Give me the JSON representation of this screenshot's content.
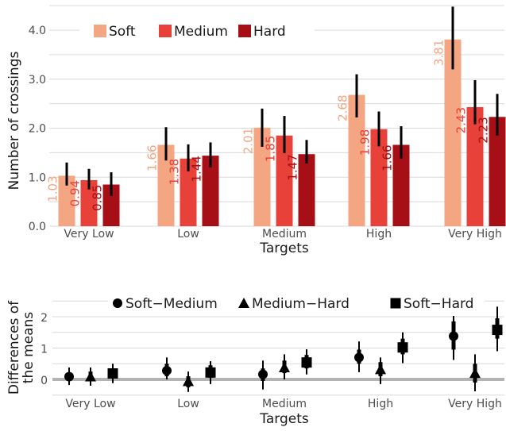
{
  "chart_data": [
    {
      "type": "bar",
      "xlabel": "Targets",
      "ylabel": "Number of crossings",
      "ylim": [
        0,
        4.4
      ],
      "yticks": [
        "0.0",
        "1.0",
        "2.0",
        "3.0",
        "4.0"
      ],
      "grid": true,
      "legend_position": "top-left",
      "categories": [
        "Very Low",
        "Low",
        "Medium",
        "High",
        "Very High"
      ],
      "series": [
        {
          "name": "Soft",
          "color": "#f4a582",
          "values": [
            1.03,
            1.66,
            2.01,
            2.68,
            3.81
          ],
          "labels": [
            "1.03",
            "1.66",
            "2.01",
            "2.68",
            "3.81"
          ],
          "err_low": [
            0.83,
            1.34,
            1.62,
            2.22,
            3.2
          ],
          "err_high": [
            1.3,
            2.02,
            2.4,
            3.1,
            4.48
          ]
        },
        {
          "name": "Medium",
          "color": "#e8413a",
          "values": [
            0.94,
            1.38,
            1.85,
            1.98,
            2.43
          ],
          "labels": [
            "0.94",
            "1.38",
            "1.85",
            "1.98",
            "2.43"
          ],
          "err_low": [
            0.75,
            1.12,
            1.49,
            1.63,
            2.08
          ],
          "err_high": [
            1.17,
            1.67,
            2.25,
            2.34,
            2.98
          ]
        },
        {
          "name": "Hard",
          "color": "#a50f15",
          "values": [
            0.85,
            1.44,
            1.47,
            1.66,
            2.23
          ],
          "labels": [
            "0.85",
            "1.44",
            "1.47",
            "1.66",
            "2.23"
          ],
          "err_low": [
            0.62,
            1.2,
            1.28,
            1.38,
            1.85
          ],
          "err_high": [
            1.1,
            1.71,
            1.76,
            2.04,
            2.7
          ]
        }
      ]
    },
    {
      "type": "scatter",
      "xlabel": "Targets",
      "ylabel_lines": [
        "Differences of",
        "the means"
      ],
      "ylim": [
        -0.3,
        2.5
      ],
      "yticks": [
        "0",
        "1",
        "2"
      ],
      "grid": true,
      "legend_position": "top",
      "categories": [
        "Very Low",
        "Low",
        "Medium",
        "High",
        "Very High"
      ],
      "series": [
        {
          "name": "Soft−Medium",
          "marker": "circle",
          "values": [
            0.09,
            0.28,
            0.16,
            0.7,
            1.38
          ],
          "ci95_low": [
            -0.18,
            0.0,
            -0.32,
            0.23,
            0.62
          ],
          "ci95_high": [
            0.38,
            0.7,
            0.6,
            1.21,
            2.12
          ],
          "ci50_low": [
            0.0,
            0.1,
            -0.05,
            0.5,
            0.95
          ],
          "ci50_high": [
            0.2,
            0.5,
            0.35,
            0.95,
            1.85
          ]
        },
        {
          "name": "Medium−Hard",
          "marker": "triangle",
          "values": [
            0.09,
            -0.06,
            0.38,
            0.32,
            0.2
          ],
          "ci95_low": [
            -0.2,
            -0.4,
            0.0,
            -0.15,
            -0.38
          ],
          "ci95_high": [
            0.38,
            0.25,
            0.8,
            0.7,
            0.8
          ],
          "ci50_low": [
            0.0,
            -0.25,
            0.2,
            0.1,
            -0.1
          ],
          "ci50_high": [
            0.25,
            0.1,
            0.6,
            0.55,
            0.5
          ]
        },
        {
          "name": "Soft−Hard",
          "marker": "square",
          "values": [
            0.19,
            0.22,
            0.54,
            1.02,
            1.58
          ],
          "ci95_low": [
            -0.12,
            -0.15,
            0.16,
            0.52,
            0.9
          ],
          "ci95_high": [
            0.5,
            0.58,
            0.96,
            1.5,
            2.32
          ],
          "ci50_low": [
            0.05,
            0.05,
            0.35,
            0.8,
            1.3
          ],
          "ci50_high": [
            0.35,
            0.45,
            0.78,
            1.3,
            1.95
          ]
        }
      ]
    }
  ]
}
